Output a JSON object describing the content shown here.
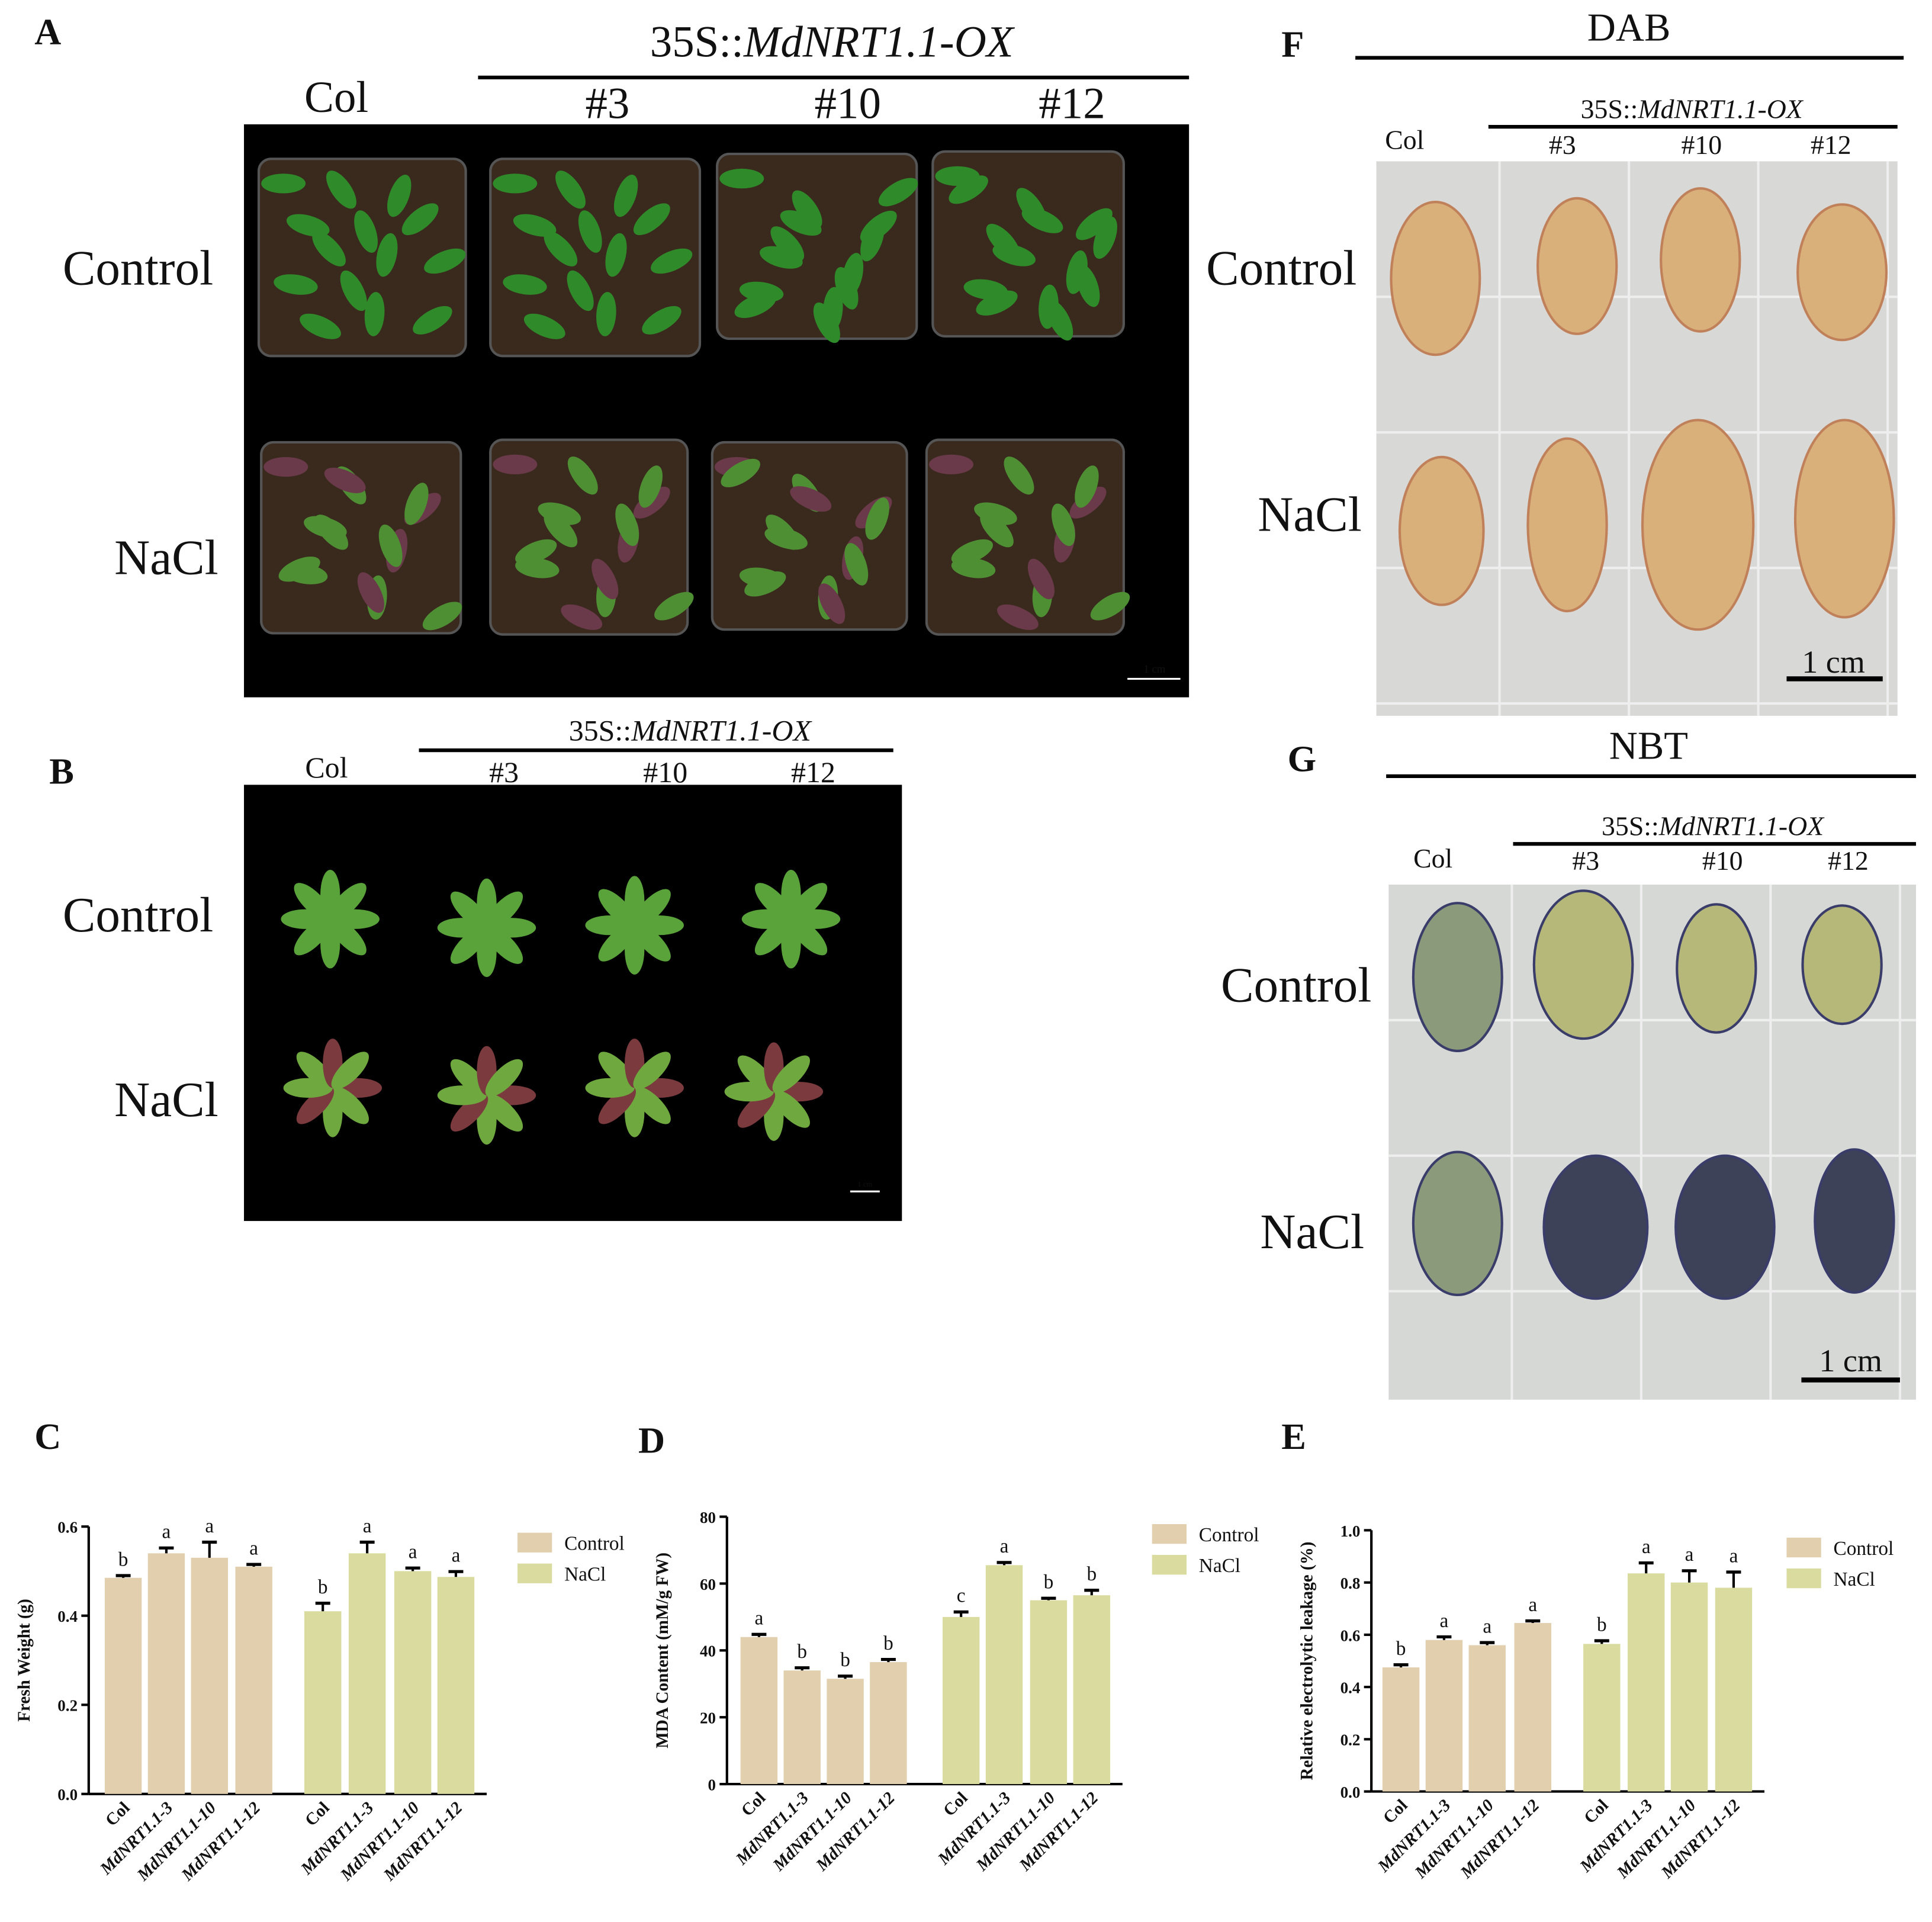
{
  "panels": {
    "A": {
      "label": "A",
      "header": {
        "prefix": "35S::",
        "italic": "MdNRT1.1-OX"
      },
      "columns": [
        "Col",
        "#3",
        "#10",
        "#12"
      ],
      "rows": [
        "Control",
        "NaCl"
      ],
      "scale": "1 cm"
    },
    "B": {
      "label": "B",
      "header": {
        "prefix": "35S::",
        "italic": "MdNRT1.1-OX"
      },
      "columns": [
        "Col",
        "#3",
        "#10",
        "#12"
      ],
      "rows": [
        "Control",
        "NaCl"
      ],
      "scale": "1 cm"
    },
    "F": {
      "label": "F",
      "title": "DAB",
      "header": {
        "prefix": "35S::",
        "italic": "MdNRT1.1-OX"
      },
      "columns": [
        "Col",
        "#3",
        "#10",
        "#12"
      ],
      "rows": [
        "Control",
        "NaCl"
      ],
      "scale": "1 cm"
    },
    "G": {
      "label": "G",
      "title": "NBT",
      "header": {
        "prefix": "35S::",
        "italic": "MdNRT1.1-OX"
      },
      "columns": [
        "Col",
        "#3",
        "#10",
        "#12"
      ],
      "rows": [
        "Control",
        "NaCl"
      ],
      "scale": "1 cm"
    }
  },
  "chart_data": [
    {
      "type": "bar",
      "panel": "C",
      "ylabel": "Fresh Weight (g)",
      "categories": [
        "Col",
        "MdNRT1.1-3",
        "MdNRT1.1-10",
        "MdNRT1.1-12",
        "Col",
        "MdNRT1.1-3",
        "MdNRT1.1-10",
        "MdNRT1.1-12"
      ],
      "series": [
        {
          "name": "Control",
          "color": "#e2cfae",
          "values": [
            0.485,
            0.54,
            0.53,
            0.51,
            null,
            null,
            null,
            null
          ],
          "errors": [
            0.005,
            0.012,
            0.035,
            0.005,
            null,
            null,
            null,
            null
          ],
          "letters": [
            "b",
            "a",
            "a",
            "a",
            null,
            null,
            null,
            null
          ]
        },
        {
          "name": "NaCl",
          "color": "#d9dc9e",
          "values": [
            null,
            null,
            null,
            null,
            0.41,
            0.54,
            0.5,
            0.487
          ],
          "errors": [
            null,
            null,
            null,
            null,
            0.018,
            0.025,
            0.007,
            0.012
          ],
          "letters": [
            null,
            null,
            null,
            null,
            "b",
            "a",
            "a",
            "a"
          ]
        }
      ],
      "ylim": [
        0,
        0.6
      ],
      "yticks": [
        {
          "value": 0,
          "label": "0.0"
        },
        0.2,
        0.4,
        0.6
      ],
      "legend": "right"
    },
    {
      "type": "bar",
      "panel": "D",
      "ylabel": "MDA Content (mM/g FW)",
      "categories": [
        "Col",
        "MdNRT1.1-3",
        "MdNRT1.1-10",
        "MdNRT1.1-12",
        "Col",
        "MdNRT1.1-3",
        "MdNRT1.1-10",
        "MdNRT1.1-12"
      ],
      "series": [
        {
          "name": "Control",
          "color": "#e2cfae",
          "values": [
            44,
            34,
            31.5,
            36.5,
            null,
            null,
            null,
            null
          ],
          "errors": [
            0.8,
            0.8,
            0.8,
            0.8,
            null,
            null,
            null,
            null
          ],
          "letters": [
            "a",
            "b",
            "b",
            "b",
            null,
            null,
            null,
            null
          ]
        },
        {
          "name": "NaCl",
          "color": "#d9dc9e",
          "values": [
            null,
            null,
            null,
            null,
            50,
            65.5,
            55,
            56.5
          ],
          "errors": [
            null,
            null,
            null,
            null,
            1.5,
            0.8,
            0.6,
            1.5
          ],
          "letters": [
            null,
            null,
            null,
            null,
            "c",
            "a",
            "b",
            "b"
          ]
        }
      ],
      "ylim": [
        0,
        80
      ],
      "yticks": [
        0,
        20,
        40,
        60,
        80
      ],
      "legend": "right"
    },
    {
      "type": "bar",
      "panel": "E",
      "ylabel": "Relative electrolytic leakage (%)",
      "categories": [
        "Col",
        "MdNRT1.1-3",
        "MdNRT1.1-10",
        "MdNRT1.1-12",
        "Col",
        "MdNRT1.1-3",
        "MdNRT1.1-10",
        "MdNRT1.1-12"
      ],
      "series": [
        {
          "name": "Control",
          "color": "#e2cfae",
          "values": [
            0.475,
            0.58,
            0.56,
            0.645,
            null,
            null,
            null,
            null
          ],
          "errors": [
            0.01,
            0.012,
            0.01,
            0.008,
            null,
            null,
            null,
            null
          ],
          "letters": [
            "b",
            "a",
            "a",
            "a",
            null,
            null,
            null,
            null
          ]
        },
        {
          "name": "NaCl",
          "color": "#d9dc9e",
          "values": [
            null,
            null,
            null,
            null,
            0.565,
            0.835,
            0.8,
            0.78
          ],
          "errors": [
            null,
            null,
            null,
            null,
            0.012,
            0.04,
            0.045,
            0.06
          ],
          "letters": [
            null,
            null,
            null,
            null,
            "b",
            "a",
            "a",
            "a"
          ]
        }
      ],
      "ylim": [
        0,
        1
      ],
      "yticks": [
        {
          "value": 0,
          "label": "0.0"
        },
        0.2,
        0.4,
        0.6,
        0.8,
        {
          "value": 1,
          "label": "1.0"
        }
      ],
      "legend": "right"
    }
  ]
}
